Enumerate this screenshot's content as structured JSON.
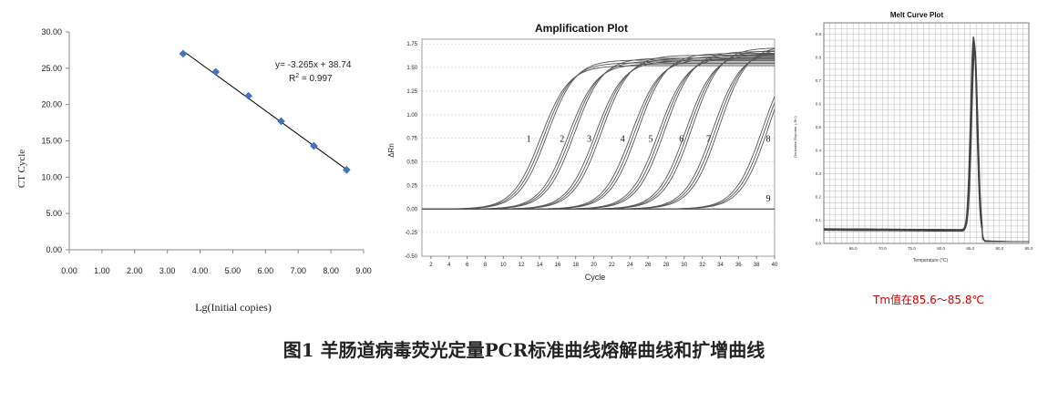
{
  "caption": "图1  羊肠道病毒荧光定量PCR标准曲线熔解曲线和扩增曲线",
  "tm_note": "Tm值在85.6～85.8℃",
  "colors": {
    "marker": "#4472c4",
    "line": "#000000",
    "curves": "#555555",
    "melt": "#444444",
    "tm_note": "#cc0000"
  },
  "chart_data": [
    {
      "type": "scatter",
      "title": "",
      "xlabel": "Lg(Initial copies)",
      "ylabel": "CT Cycle",
      "xlim": [
        0,
        9
      ],
      "ylim": [
        0,
        30
      ],
      "xticks": [
        "0.00",
        "1.00",
        "2.00",
        "3.00",
        "4.00",
        "5.00",
        "6.00",
        "7.00",
        "8.00",
        "9.00"
      ],
      "yticks": [
        "0.00",
        "5.00",
        "10.00",
        "15.00",
        "20.00",
        "25.00",
        "30.00"
      ],
      "series": [
        {
          "x": [
            3.48,
            4.48,
            5.48,
            6.48,
            7.48,
            8.48
          ],
          "y": [
            27.0,
            24.5,
            21.2,
            17.7,
            14.3,
            11.0
          ]
        }
      ],
      "trendline": {
        "slope": -3.265,
        "intercept": 38.74,
        "x_range": [
          3.48,
          8.48
        ]
      },
      "annotation": {
        "equation": "y= -3.265x + 38.74",
        "r2_prefix": "R",
        "r2_sup": "2",
        "r2_suffix": " = 0.997"
      }
    },
    {
      "type": "line",
      "title": "Amplification Plot",
      "xlabel": "Cycle",
      "ylabel": "ΔRn",
      "xlim": [
        1,
        40
      ],
      "ylim": [
        -0.5,
        1.8
      ],
      "xticks": [
        "2",
        "4",
        "6",
        "8",
        "10",
        "12",
        "14",
        "16",
        "18",
        "20",
        "22",
        "24",
        "26",
        "28",
        "30",
        "32",
        "34",
        "36",
        "38",
        "40"
      ],
      "yticks": [
        "-0.50",
        "-0.25",
        "0.00",
        "0.25",
        "0.50",
        "0.75",
        "1.00",
        "1.25",
        "1.50",
        "1.75"
      ],
      "series": [
        {
          "name": "1",
          "midpoint": 14.5,
          "plateau": 1.55
        },
        {
          "name": "2",
          "midpoint": 17.5,
          "plateau": 1.57
        },
        {
          "name": "3",
          "midpoint": 20.5,
          "plateau": 1.6
        },
        {
          "name": "4",
          "midpoint": 24.5,
          "plateau": 1.62
        },
        {
          "name": "5",
          "midpoint": 27.5,
          "plateau": 1.64
        },
        {
          "name": "6",
          "midpoint": 30.5,
          "plateau": 1.68
        },
        {
          "name": "7",
          "midpoint": 33.5,
          "plateau": 1.7
        },
        {
          "name": "8",
          "midpoint": 39.0,
          "plateau": 1.72
        },
        {
          "name": "9",
          "midpoint": null,
          "plateau": 0.0
        }
      ],
      "curve_labels": [
        {
          "text": "1",
          "x": 12.8,
          "y": 0.75
        },
        {
          "text": "2",
          "x": 16.5,
          "y": 0.75
        },
        {
          "text": "3",
          "x": 19.5,
          "y": 0.75
        },
        {
          "text": "4",
          "x": 23.2,
          "y": 0.75
        },
        {
          "text": "5",
          "x": 26.3,
          "y": 0.75
        },
        {
          "text": "6",
          "x": 29.7,
          "y": 0.75
        },
        {
          "text": "7",
          "x": 32.7,
          "y": 0.75
        },
        {
          "text": "8",
          "x": 39.3,
          "y": 0.75
        },
        {
          "text": "9",
          "x": 39.3,
          "y": 0.12
        }
      ]
    },
    {
      "type": "line",
      "title": "Melt Curve Plot",
      "xlabel": "Temperature (°C)",
      "ylabel": "Derivative Reporter (-Rn')",
      "xlim": [
        60,
        95
      ],
      "ylim": [
        0,
        0.95
      ],
      "xticks": [
        "65.0",
        "70.0",
        "75.0",
        "80.0",
        "85.0",
        "90.0",
        "95.0"
      ],
      "yticks": [
        "0.0",
        "0.1",
        "0.2",
        "0.3",
        "0.4",
        "0.5",
        "0.6",
        "0.7",
        "0.8",
        "0.9"
      ],
      "peak": {
        "x": 85.7,
        "y": 0.9
      },
      "baseline": 0.06
    }
  ]
}
